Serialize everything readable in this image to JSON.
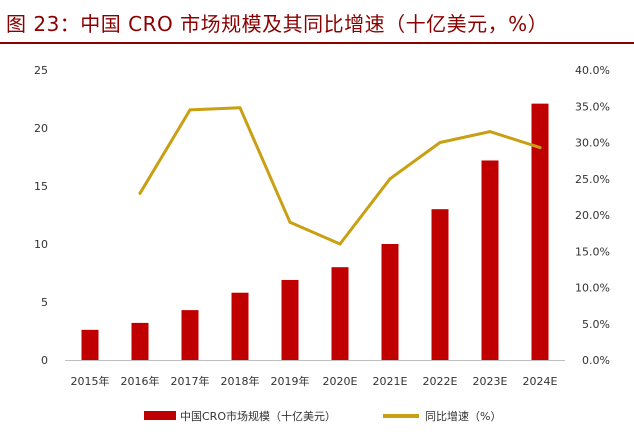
{
  "header": {
    "title": "图 23：中国 CRO 市场规模及其同比增速（十亿美元，%）"
  },
  "colors": {
    "title": "#8b0000",
    "bar": "#c00000",
    "line": "#c9a013"
  },
  "chart_data": {
    "type": "bar+line",
    "title": "图 23：中国 CRO 市场规模及其同比增速（十亿美元，%）",
    "categories": [
      "2015年",
      "2016年",
      "2017年",
      "2018年",
      "2019年",
      "2020E",
      "2021E",
      "2022E",
      "2023E",
      "2024E"
    ],
    "series": [
      {
        "name": "中国CRO市场规模（十亿美元）",
        "type": "bar",
        "axis": "left",
        "values": [
          2.6,
          3.2,
          4.3,
          5.8,
          6.9,
          8.0,
          10.0,
          13.0,
          17.2,
          22.1
        ]
      },
      {
        "name": "同比增速（%）",
        "type": "line",
        "axis": "right",
        "values": [
          null,
          23.0,
          34.5,
          34.8,
          19.0,
          16.0,
          25.0,
          30.0,
          31.5,
          29.3
        ]
      }
    ],
    "y_left": {
      "min": 0,
      "max": 25,
      "ticks": [
        "0",
        "5",
        "10",
        "15",
        "20",
        "25"
      ]
    },
    "y_right": {
      "min": 0,
      "max": 40,
      "ticks": [
        "0.0%",
        "5.0%",
        "10.0%",
        "15.0%",
        "20.0%",
        "25.0%",
        "30.0%",
        "35.0%",
        "40.0%"
      ]
    },
    "legend": {
      "position": "bottom",
      "items": [
        "中国CRO市场规模（十亿美元）",
        "同比增速（%）"
      ]
    },
    "grid": false
  }
}
